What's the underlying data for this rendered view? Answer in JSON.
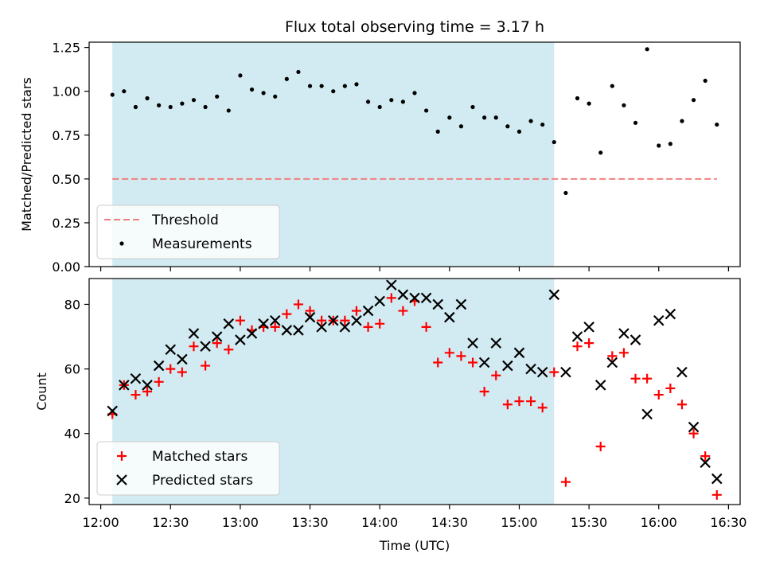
{
  "chart_data": [
    {
      "type": "scatter",
      "title": "Flux total observing time = 3.17 h",
      "ylabel": "Matched/Predicted stars",
      "ylim": [
        0.0,
        1.28
      ],
      "yticks": [
        "0.00",
        "0.25",
        "0.50",
        "0.75",
        "1.00",
        "1.25"
      ],
      "ytick_values": [
        0,
        0.25,
        0.5,
        0.75,
        1.0,
        1.25
      ],
      "shaded_span": [
        "12:05",
        "15:15"
      ],
      "shade_color": "#add8e6",
      "threshold": {
        "name": "Threshold",
        "value": 0.5,
        "x_start": "12:05",
        "x_end": "16:25",
        "color": "#f08080",
        "style": "dashed"
      },
      "series": [
        {
          "name": "Measurements",
          "color": "#000000",
          "marker": "dot",
          "x": [
            "12:05",
            "12:10",
            "12:15",
            "12:20",
            "12:25",
            "12:30",
            "12:35",
            "12:40",
            "12:45",
            "12:50",
            "12:55",
            "13:00",
            "13:05",
            "13:10",
            "13:15",
            "13:20",
            "13:25",
            "13:30",
            "13:35",
            "13:40",
            "13:45",
            "13:50",
            "13:55",
            "14:00",
            "14:05",
            "14:10",
            "14:15",
            "14:20",
            "14:25",
            "14:30",
            "14:35",
            "14:40",
            "14:45",
            "14:50",
            "14:55",
            "15:00",
            "15:05",
            "15:10",
            "15:15",
            "15:20",
            "15:25",
            "15:30",
            "15:35",
            "15:40",
            "15:45",
            "15:50",
            "15:55",
            "16:00",
            "16:05",
            "16:10",
            "16:15",
            "16:20",
            "16:25"
          ],
          "values": [
            0.98,
            1.0,
            0.91,
            0.96,
            0.92,
            0.91,
            0.93,
            0.95,
            0.91,
            0.97,
            0.89,
            1.09,
            1.01,
            0.99,
            0.97,
            1.07,
            1.11,
            1.03,
            1.03,
            1.0,
            1.03,
            1.04,
            0.94,
            0.91,
            0.95,
            0.94,
            0.99,
            0.89,
            0.77,
            0.85,
            0.8,
            0.91,
            0.85,
            0.85,
            0.8,
            0.77,
            0.83,
            0.81,
            0.71,
            0.42,
            0.96,
            0.93,
            0.65,
            1.03,
            0.92,
            0.82,
            1.24,
            0.69,
            0.7,
            0.83,
            0.95,
            1.06,
            0.81
          ]
        }
      ],
      "legend": "lower-left"
    },
    {
      "type": "scatter",
      "xlabel": "Time (UTC)",
      "ylabel": "Count",
      "ylim": [
        18,
        88
      ],
      "yticks": [
        "20",
        "40",
        "60",
        "80"
      ],
      "ytick_values": [
        20,
        40,
        60,
        80
      ],
      "xticks": [
        "12:00",
        "12:30",
        "13:00",
        "13:30",
        "14:00",
        "14:30",
        "15:00",
        "15:30",
        "16:00",
        "16:30"
      ],
      "xlim": [
        "11:55",
        "16:35"
      ],
      "shaded_span": [
        "12:05",
        "15:15"
      ],
      "shade_color": "#add8e6",
      "series": [
        {
          "name": "Matched stars",
          "color": "#ff0000",
          "marker": "plus",
          "x": [
            "12:05",
            "12:10",
            "12:15",
            "12:20",
            "12:25",
            "12:30",
            "12:35",
            "12:40",
            "12:45",
            "12:50",
            "12:55",
            "13:00",
            "13:05",
            "13:10",
            "13:15",
            "13:20",
            "13:25",
            "13:30",
            "13:35",
            "13:40",
            "13:45",
            "13:50",
            "13:55",
            "14:00",
            "14:05",
            "14:10",
            "14:15",
            "14:20",
            "14:25",
            "14:30",
            "14:35",
            "14:40",
            "14:45",
            "14:50",
            "14:55",
            "15:00",
            "15:05",
            "15:10",
            "15:15",
            "15:20",
            "15:25",
            "15:30",
            "15:35",
            "15:40",
            "15:45",
            "15:50",
            "15:55",
            "16:00",
            "16:05",
            "16:10",
            "16:15",
            "16:20",
            "16:25"
          ],
          "values": [
            46,
            55,
            52,
            53,
            56,
            60,
            59,
            67,
            61,
            68,
            66,
            75,
            72,
            73,
            73,
            77,
            80,
            78,
            75,
            75,
            75,
            78,
            73,
            74,
            82,
            78,
            81,
            73,
            62,
            65,
            64,
            62,
            53,
            58,
            49,
            50,
            50,
            48,
            59,
            25,
            67,
            68,
            36,
            64,
            65,
            57,
            57,
            52,
            54,
            49,
            40,
            33,
            21
          ]
        },
        {
          "name": "Predicted stars",
          "color": "#000000",
          "marker": "x",
          "x": [
            "12:05",
            "12:10",
            "12:15",
            "12:20",
            "12:25",
            "12:30",
            "12:35",
            "12:40",
            "12:45",
            "12:50",
            "12:55",
            "13:00",
            "13:05",
            "13:10",
            "13:15",
            "13:20",
            "13:25",
            "13:30",
            "13:35",
            "13:40",
            "13:45",
            "13:50",
            "13:55",
            "14:00",
            "14:05",
            "14:10",
            "14:15",
            "14:20",
            "14:25",
            "14:30",
            "14:35",
            "14:40",
            "14:45",
            "14:50",
            "14:55",
            "15:00",
            "15:05",
            "15:10",
            "15:15",
            "15:20",
            "15:25",
            "15:30",
            "15:35",
            "15:40",
            "15:45",
            "15:50",
            "15:55",
            "16:00",
            "16:05",
            "16:10",
            "16:15",
            "16:20",
            "16:25"
          ],
          "values": [
            47,
            55,
            57,
            55,
            61,
            66,
            63,
            71,
            67,
            70,
            74,
            69,
            71,
            74,
            75,
            72,
            72,
            76,
            73,
            75,
            73,
            75,
            78,
            81,
            86,
            83,
            82,
            82,
            80,
            76,
            80,
            68,
            62,
            68,
            61,
            65,
            60,
            59,
            83,
            59,
            70,
            73,
            55,
            62,
            71,
            69,
            46,
            75,
            77,
            59,
            42,
            31,
            26
          ]
        }
      ],
      "legend": "lower-left"
    }
  ]
}
